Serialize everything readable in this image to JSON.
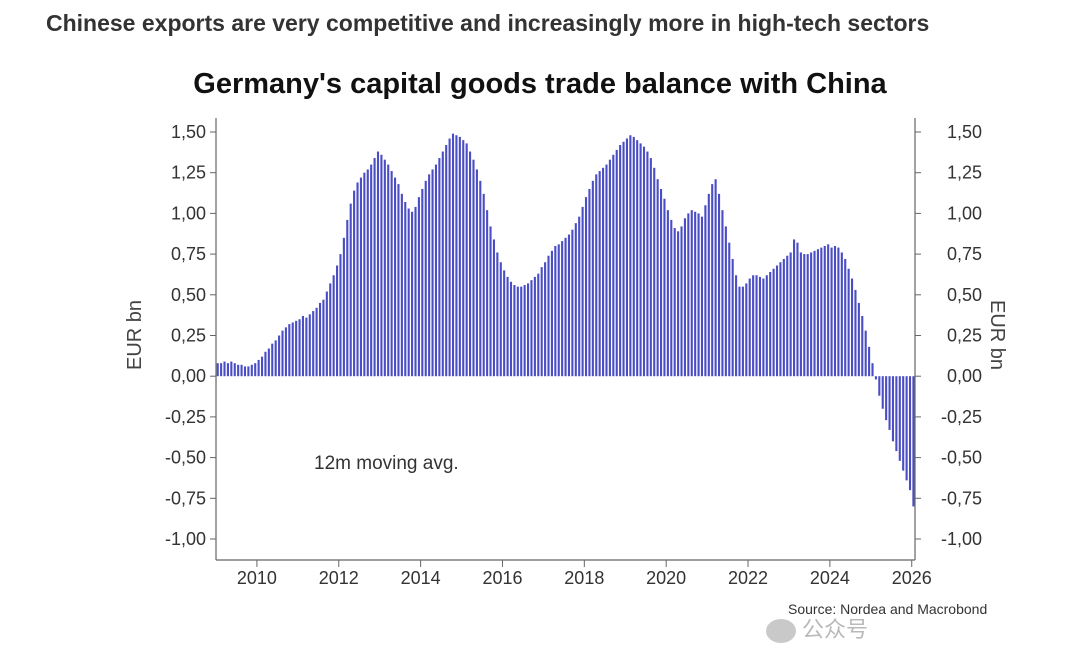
{
  "headline": "Chinese exports are very competitive and increasingly more in high-tech sectors",
  "source": "Source: Nordea and Macrobond",
  "watermark": "公众号",
  "colors": {
    "bar": "#4a4dc4",
    "axis": "#666666",
    "text": "#333333"
  },
  "chart_data": {
    "type": "bar",
    "title": "Germany's capital goods trade balance with China",
    "ylabel": "EUR bn",
    "ylabel_right": "EUR bn",
    "annotation": "12m moving avg.",
    "ylim": [
      -1.0,
      1.5
    ],
    "y_ticks": [
      "1,50",
      "1,25",
      "1,00",
      "0,75",
      "0,50",
      "0,25",
      "0,00",
      "-0,25",
      "-0,50",
      "-0,75",
      "-1,00"
    ],
    "x_ticks": [
      "2010",
      "2012",
      "2014",
      "2016",
      "2018",
      "2020",
      "2022",
      "2024",
      "2026"
    ],
    "x_range": [
      "2009-01",
      "2026-01"
    ],
    "frequency": "monthly",
    "grid": false,
    "series": [
      {
        "values_by_year": {
          "2009": [
            0.08,
            0.08,
            0.09,
            0.08,
            0.09,
            0.08,
            0.07,
            0.07,
            0.06,
            0.06,
            0.07,
            0.08
          ],
          "2010": [
            0.1,
            0.12,
            0.15,
            0.17,
            0.2,
            0.22,
            0.25,
            0.28,
            0.3,
            0.32,
            0.33,
            0.34
          ],
          "2011": [
            0.35,
            0.37,
            0.36,
            0.38,
            0.4,
            0.42,
            0.45,
            0.47,
            0.52,
            0.57,
            0.62,
            0.68
          ],
          "2012": [
            0.75,
            0.85,
            0.96,
            1.06,
            1.14,
            1.19,
            1.22,
            1.25,
            1.27,
            1.3,
            1.34,
            1.38
          ],
          "2013": [
            1.36,
            1.33,
            1.3,
            1.26,
            1.22,
            1.18,
            1.12,
            1.07,
            1.03,
            1.01,
            1.04,
            1.1
          ],
          "2014": [
            1.15,
            1.2,
            1.24,
            1.27,
            1.3,
            1.34,
            1.38,
            1.42,
            1.46,
            1.49,
            1.48,
            1.47
          ],
          "2015": [
            1.45,
            1.43,
            1.38,
            1.33,
            1.27,
            1.2,
            1.12,
            1.02,
            0.92,
            0.84,
            0.76,
            0.7
          ],
          "2016": [
            0.65,
            0.61,
            0.58,
            0.56,
            0.55,
            0.55,
            0.56,
            0.57,
            0.59,
            0.61,
            0.63,
            0.67
          ],
          "2017": [
            0.7,
            0.74,
            0.77,
            0.8,
            0.81,
            0.83,
            0.85,
            0.87,
            0.9,
            0.94,
            0.98,
            1.04
          ],
          "2018": [
            1.1,
            1.15,
            1.2,
            1.24,
            1.26,
            1.28,
            1.3,
            1.33,
            1.36,
            1.39,
            1.42,
            1.44
          ],
          "2019": [
            1.46,
            1.48,
            1.47,
            1.45,
            1.43,
            1.41,
            1.38,
            1.34,
            1.28,
            1.21,
            1.15,
            1.09
          ],
          "2020": [
            1.02,
            0.96,
            0.91,
            0.89,
            0.92,
            0.97,
            1.0,
            1.02,
            1.01,
            1.0,
            0.98,
            1.05
          ],
          "2021": [
            1.12,
            1.18,
            1.21,
            1.12,
            1.02,
            0.92,
            0.82,
            0.72,
            0.62,
            0.55,
            0.55,
            0.57
          ],
          "2022": [
            0.6,
            0.62,
            0.62,
            0.61,
            0.6,
            0.62,
            0.64,
            0.66,
            0.68,
            0.7,
            0.72,
            0.74
          ],
          "2023": [
            0.76,
            0.84,
            0.82,
            0.76,
            0.75,
            0.75,
            0.76,
            0.77,
            0.78,
            0.79,
            0.8,
            0.81
          ],
          "2024": [
            0.79,
            0.8,
            0.79,
            0.76,
            0.72,
            0.66,
            0.6,
            0.53,
            0.45,
            0.37,
            0.28,
            0.18
          ],
          "2025": [
            0.08,
            -0.02,
            -0.12,
            -0.2,
            -0.27,
            -0.33,
            -0.4,
            -0.46,
            -0.52,
            -0.58,
            -0.64,
            -0.7
          ],
          "2026": [
            -0.8
          ]
        }
      }
    ]
  }
}
